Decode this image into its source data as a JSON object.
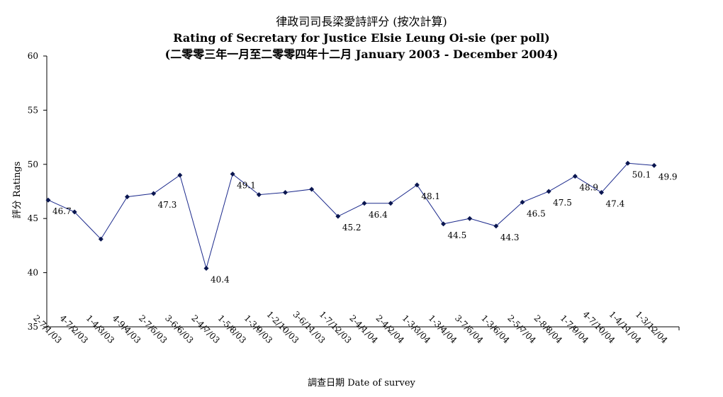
{
  "chart_data": {
    "type": "line",
    "title": "律政司司長梁愛詩評分 (按次計算)",
    "subtitle": "Rating of Secretary for Justice Elsie Leung Oi-sie  (per poll)",
    "subtitle2": "(二零零三年一月至二零零四年十二月 January 2003 - December 2004)",
    "xlabel": "調查日期 Date of survey",
    "ylabel": "評分 Ratings",
    "ylim": [
      35,
      60
    ],
    "yticks": [
      "35",
      "40",
      "45",
      "50",
      "55",
      "60"
    ],
    "grid": false,
    "categories": [
      "2-7/1/03",
      "4-7/2/03",
      "1-4/3/03",
      "4-9/4/03",
      "2-7/5/03",
      "3-6/6/03",
      "2-4/7/03",
      "1-5/8/03",
      "1-3/9/03",
      "1-2/10/03",
      "3-6/11/03",
      "1-7/12/03",
      "2-4/1/04",
      "2-4/2/04",
      "1-3/3/04",
      "1-3/4/04",
      "3-7/5/04",
      "1-3/6/04",
      "2-5/7/04",
      "2-8/8/04",
      "1-7/9/04",
      "4-7/10/04",
      "1-4/11/04",
      "1-3/12/04"
    ],
    "values": [
      46.7,
      45.6,
      43.1,
      47.0,
      47.3,
      49.0,
      40.4,
      49.1,
      47.2,
      47.4,
      47.7,
      45.2,
      46.4,
      46.4,
      48.1,
      44.5,
      45.0,
      44.3,
      46.5,
      47.5,
      48.9,
      47.4,
      50.1,
      49.9
    ],
    "data_labels": [
      {
        "index": 0,
        "text": "46.7"
      },
      {
        "index": 4,
        "text": "47.3"
      },
      {
        "index": 6,
        "text": "40.4"
      },
      {
        "index": 7,
        "text": "49.1"
      },
      {
        "index": 11,
        "text": "45.2"
      },
      {
        "index": 12,
        "text": "46.4"
      },
      {
        "index": 14,
        "text": "48.1"
      },
      {
        "index": 15,
        "text": "44.5"
      },
      {
        "index": 17,
        "text": "44.3"
      },
      {
        "index": 18,
        "text": "46.5"
      },
      {
        "index": 19,
        "text": "47.5"
      },
      {
        "index": 20,
        "text": "48.9"
      },
      {
        "index": 21,
        "text": "47.4"
      },
      {
        "index": 22,
        "text": "50.1"
      },
      {
        "index": 23,
        "text": "49.9"
      }
    ],
    "line_color": "#1c2a8c",
    "marker_color": "#0a1650"
  }
}
